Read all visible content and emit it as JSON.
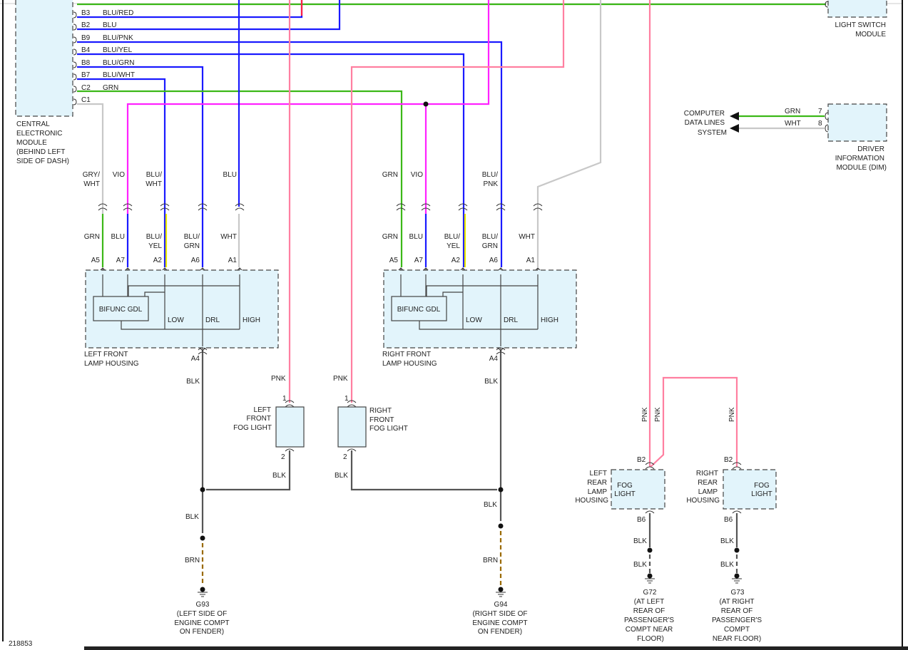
{
  "diagram_id": "218853",
  "colors": {
    "GRN": "#3cb818",
    "BLU": "#1a1aff",
    "VIO": "#ff22ff",
    "PNK": "#ff7fa0",
    "WHT": "#c8c8c8",
    "BLK": "#555555",
    "BRN": "#9a6a00",
    "housing_fill": "#e2f4fb"
  },
  "central_module": {
    "name_lines": [
      "CENTRAL",
      "ELECTRONIC",
      "MODULE",
      "(BEHIND LEFT",
      "SIDE OF DASH)"
    ],
    "pins": [
      {
        "pin": "B3",
        "wire": "BLU/RED"
      },
      {
        "pin": "B2",
        "wire": "BLU"
      },
      {
        "pin": "B9",
        "wire": "BLU/PNK"
      },
      {
        "pin": "B4",
        "wire": "BLU/YEL"
      },
      {
        "pin": "B8",
        "wire": "BLU/GRN"
      },
      {
        "pin": "B7",
        "wire": "BLU/WHT"
      },
      {
        "pin": "C2",
        "wire": "GRN"
      },
      {
        "pin": "C1",
        "wire": ""
      }
    ]
  },
  "light_switch_module": {
    "name_lines": [
      "LIGHT SWITCH",
      "MODULE"
    ]
  },
  "dim": {
    "name_lines": [
      "DRIVER",
      "INFORMATION",
      "MODULE (DIM)"
    ],
    "pins": [
      {
        "pin": "7",
        "wire": "GRN"
      },
      {
        "pin": "8",
        "wire": "WHT"
      }
    ],
    "destination_lines": [
      "COMPUTER",
      "DATA LINES",
      "SYSTEM"
    ]
  },
  "left_front_housing": {
    "name_lines": [
      "LEFT FRONT",
      "LAMP HOUSING"
    ],
    "upper_wires": [
      [
        "GRY/",
        "WHT"
      ],
      [
        "VIO",
        ""
      ],
      [
        "BLU/",
        "WHT"
      ],
      [
        "",
        ""
      ],
      [
        "BLU",
        ""
      ]
    ],
    "lower_wires": [
      [
        "GRN",
        ""
      ],
      [
        "BLU",
        ""
      ],
      [
        "BLU/",
        "YEL"
      ],
      [
        "BLU/",
        "GRN"
      ],
      [
        "WHT",
        ""
      ]
    ],
    "pins": [
      "A5",
      "A7",
      "A2",
      "A6",
      "A1"
    ],
    "module": "BIFUNC GDL",
    "bulbs": [
      "LOW",
      "DRL",
      "HIGH"
    ],
    "ground_pin": "A4",
    "ground_wire": "BLK"
  },
  "right_front_housing": {
    "name_lines": [
      "RIGHT FRONT",
      "LAMP HOUSING"
    ],
    "upper_wires": [
      [
        "GRN",
        ""
      ],
      [
        "VIO",
        ""
      ],
      [
        "",
        ""
      ],
      [
        "BLU/",
        "PNK"
      ],
      [
        "",
        ""
      ]
    ],
    "lower_wires": [
      [
        "GRN",
        ""
      ],
      [
        "BLU",
        ""
      ],
      [
        "BLU/",
        "YEL"
      ],
      [
        "BLU/",
        "GRN"
      ],
      [
        "WHT",
        ""
      ]
    ],
    "pins": [
      "A5",
      "A7",
      "A2",
      "A6",
      "A1"
    ],
    "module": "BIFUNC GDL",
    "bulbs": [
      "LOW",
      "DRL",
      "HIGH"
    ],
    "ground_pin": "A4",
    "ground_wire": "BLK"
  },
  "left_front_fog": {
    "name_lines": [
      "LEFT",
      "FRONT",
      "FOG LIGHT"
    ],
    "pin_in": "1",
    "pin_out": "2",
    "wire_in": "PNK",
    "wire_out": "BLK"
  },
  "right_front_fog": {
    "name_lines": [
      "RIGHT",
      "FRONT",
      "FOG LIGHT"
    ],
    "pin_in": "1",
    "pin_out": "2",
    "wire_in": "PNK",
    "wire_out": "BLK"
  },
  "left_ground": {
    "wire1": "BLK",
    "wire2": "BRN",
    "name_lines": [
      "G93",
      "(LEFT SIDE OF",
      "ENGINE COMPT",
      "ON FENDER)"
    ]
  },
  "right_ground": {
    "wire1": "BLK",
    "wire2": "BRN",
    "name_lines": [
      "G94",
      "(RIGHT SIDE OF",
      "ENGINE COMPT",
      "ON FENDER)"
    ]
  },
  "left_rear": {
    "housing_lines": [
      "LEFT",
      "REAR",
      "LAMP",
      "HOUSING"
    ],
    "lamp_lines": [
      "FOG",
      "LIGHT"
    ],
    "pin_in": "B2",
    "pin_out": "B6",
    "wire_in": [
      "PNK",
      "PNK"
    ],
    "wire_out": "BLK",
    "ground_wire": "BLK",
    "ground_lines": [
      "G72",
      "(AT LEFT",
      "REAR OF",
      "PASSENGER'S",
      "COMPT NEAR",
      "FLOOR)"
    ]
  },
  "right_rear": {
    "housing_lines": [
      "RIGHT",
      "REAR",
      "LAMP",
      "HOUSING"
    ],
    "lamp_lines": [
      "FOG",
      "LIGHT"
    ],
    "pin_in": "B2",
    "pin_out": "B6",
    "wire_in": [
      "PNK"
    ],
    "wire_out": "BLK",
    "ground_wire": "BLK",
    "ground_lines": [
      "G73",
      "(AT RIGHT",
      "REAR OF",
      "PASSENGER'S",
      "COMPT",
      "NEAR FLOOR)"
    ]
  }
}
